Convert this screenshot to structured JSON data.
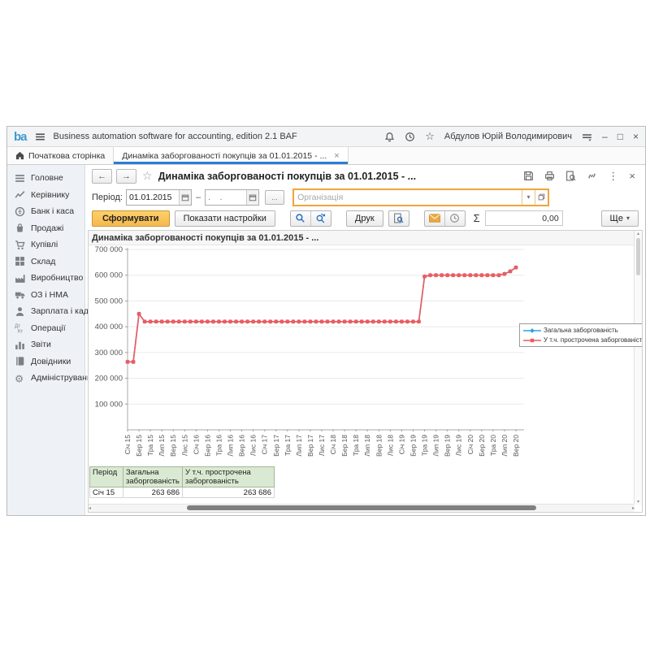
{
  "titlebar": {
    "logo": "ba",
    "app_title": "Business automation software for accounting, edition 2.1 BAF",
    "user_name": "Абдулов Юрій Володимирович"
  },
  "icons": {
    "close": "×",
    "dropdown": "▾",
    "more": "⋮",
    "star": "☆",
    "back": "←",
    "forward": "→",
    "sigma": "Σ",
    "up": "▴",
    "down": "▾",
    "left": "◂",
    "right": "▸"
  },
  "tabs": {
    "home": "Початкова сторінка",
    "report": "Динаміка заборгованості покупців за 01.01.2015 - ..."
  },
  "sidebar": {
    "items": [
      {
        "id": "holovne",
        "label": "Головне",
        "icon": "menu-icon"
      },
      {
        "id": "kerivnyku",
        "label": "Керівнику",
        "icon": "trend-icon"
      },
      {
        "id": "bank-i-kasa",
        "label": "Банк і каса",
        "icon": "coin-icon"
      },
      {
        "id": "prodazhi",
        "label": "Продажі",
        "icon": "bag-icon"
      },
      {
        "id": "kupivli",
        "label": "Купівлі",
        "icon": "cart-icon"
      },
      {
        "id": "sklad",
        "label": "Склад",
        "icon": "pallet-icon"
      },
      {
        "id": "vyrobnytstvo",
        "label": "Виробництво",
        "icon": "factory-icon"
      },
      {
        "id": "oz-i-nma",
        "label": "ОЗ і НМА",
        "icon": "truck-icon"
      },
      {
        "id": "zarplata-i-kadry",
        "label": "Зарплата і кадри",
        "icon": "person-icon"
      },
      {
        "id": "operatsii",
        "label": "Операції",
        "icon": "dtkt-icon"
      },
      {
        "id": "zvity",
        "label": "Звіти",
        "icon": "barchart-icon"
      },
      {
        "id": "dovidnyky",
        "label": "Довідники",
        "icon": "book-icon"
      },
      {
        "id": "administruvannia",
        "label": "Адміністрування",
        "icon": "gear-icon"
      }
    ]
  },
  "form": {
    "title": "Динаміка заборгованості покупців за 01.01.2015 - ...",
    "period_label": "Період:",
    "period_from": "01.01.2015",
    "period_to_placeholder": ".    .",
    "range_separator": "–",
    "ellipsis_label": "...",
    "org_placeholder": "Організація",
    "generate_label": "Сформувати",
    "settings_label": "Показати настройки",
    "print_label": "Друк",
    "sum_value": "0,00",
    "more_label": "Ще"
  },
  "chart_data": {
    "type": "line",
    "title": "Динаміка заборгованості покупців за 01.01.2015 - ...",
    "ylim": [
      0,
      700000
    ],
    "grid": "horizontal",
    "legend_position": "right",
    "months_count": 69,
    "x_label_step": 2,
    "y_ticks": [
      {
        "v": 100000,
        "label": "100 000"
      },
      {
        "v": 200000,
        "label": "200 000"
      },
      {
        "v": 300000,
        "label": "300 000"
      },
      {
        "v": 400000,
        "label": "400 000"
      },
      {
        "v": 500000,
        "label": "500 000"
      },
      {
        "v": 600000,
        "label": "600 000"
      },
      {
        "v": 700000,
        "label": "700 000"
      }
    ],
    "x_labels": [
      "Січ 15",
      "Бер 15",
      "Тра 15",
      "Лип 15",
      "Вер 15",
      "Лис 15",
      "Січ 16",
      "Бер 16",
      "Тра 16",
      "Лип 16",
      "Вер 16",
      "Лис 16",
      "Січ 17",
      "Бер 17",
      "Тра 17",
      "Лип 17",
      "Вер 17",
      "Лис 17",
      "Січ 18",
      "Бер 18",
      "Тра 18",
      "Лип 18",
      "Вер 18",
      "Лис 18",
      "Січ 19",
      "Бер 19",
      "Тра 19",
      "Лип 19",
      "Вер 19",
      "Лис 19",
      "Січ 20",
      "Бер 20",
      "Тра 20",
      "Лип 20",
      "Вер 20"
    ],
    "series": [
      {
        "name": "Загальна заборгованість",
        "color": "#2aa4dd",
        "marker": "diamond",
        "values": [
          263686,
          263686,
          450000,
          420000,
          420000,
          420000,
          420000,
          420000,
          420000,
          420000,
          420000,
          420000,
          420000,
          420000,
          420000,
          420000,
          420000,
          420000,
          420000,
          420000,
          420000,
          420000,
          420000,
          420000,
          420000,
          420000,
          420000,
          420000,
          420000,
          420000,
          420000,
          420000,
          420000,
          420000,
          420000,
          420000,
          420000,
          420000,
          420000,
          420000,
          420000,
          420000,
          420000,
          420000,
          420000,
          420000,
          420000,
          420000,
          420000,
          420000,
          420000,
          420000,
          595000,
          600000,
          600000,
          600000,
          600000,
          600000,
          600000,
          600000,
          600000,
          600000,
          600000,
          600000,
          600000,
          600000,
          605000,
          615000,
          630000
        ]
      },
      {
        "name": "У т.ч. прострочена заборгованість",
        "color": "#ef5b5e",
        "marker": "square",
        "values": [
          263686,
          263686,
          450000,
          420000,
          420000,
          420000,
          420000,
          420000,
          420000,
          420000,
          420000,
          420000,
          420000,
          420000,
          420000,
          420000,
          420000,
          420000,
          420000,
          420000,
          420000,
          420000,
          420000,
          420000,
          420000,
          420000,
          420000,
          420000,
          420000,
          420000,
          420000,
          420000,
          420000,
          420000,
          420000,
          420000,
          420000,
          420000,
          420000,
          420000,
          420000,
          420000,
          420000,
          420000,
          420000,
          420000,
          420000,
          420000,
          420000,
          420000,
          420000,
          420000,
          595000,
          600000,
          600000,
          600000,
          600000,
          600000,
          600000,
          600000,
          600000,
          600000,
          600000,
          600000,
          600000,
          600000,
          605000,
          615000,
          630000
        ]
      }
    ]
  },
  "table": {
    "headers": [
      "Період",
      "Загальна заборгованість",
      "У т.ч. прострочена заборгованість"
    ],
    "rows": [
      [
        "Січ 15",
        "263 686",
        "263 686"
      ]
    ]
  }
}
